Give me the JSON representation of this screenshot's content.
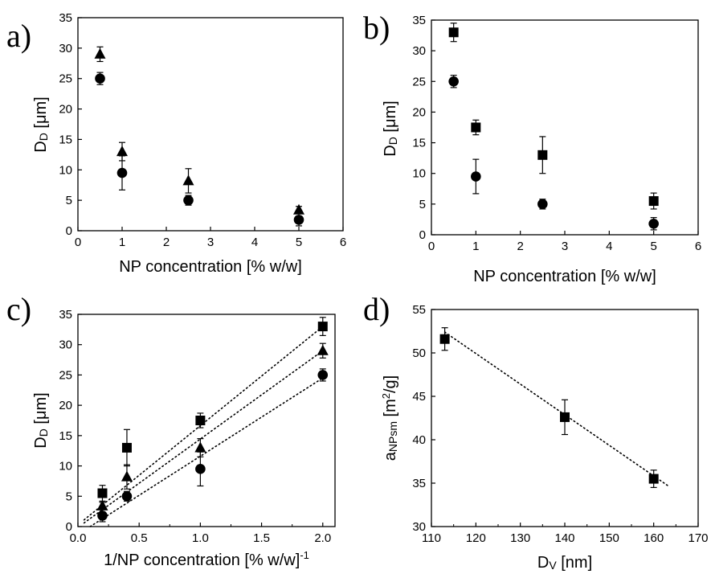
{
  "chart_data": [
    {
      "type": "scatter",
      "panel_label": "a)",
      "xlabel": "NP concentration [% w/w]",
      "ylabel_main": "D",
      "ylabel_sub": "D",
      "ylabel_unit": " [μm]",
      "xlim": [
        0,
        6
      ],
      "ylim": [
        0,
        35
      ],
      "xticks": [
        0,
        1,
        2,
        3,
        4,
        5,
        6
      ],
      "yticks": [
        0,
        5,
        10,
        15,
        20,
        25,
        30,
        35
      ],
      "series": [
        {
          "marker": "triangle",
          "x": [
            0.5,
            1.0,
            2.5,
            5.0
          ],
          "y": [
            29.0,
            13.0,
            8.2,
            3.4
          ],
          "err": [
            1.2,
            1.5,
            2.0,
            0.6
          ]
        },
        {
          "marker": "circle",
          "x": [
            0.5,
            1.0,
            2.5,
            5.0
          ],
          "y": [
            25.0,
            9.5,
            5.0,
            1.8
          ],
          "err": [
            1.0,
            2.8,
            0.8,
            1.0
          ]
        }
      ]
    },
    {
      "type": "scatter",
      "panel_label": "b)",
      "xlabel": "NP concentration [% w/w]",
      "ylabel_main": "D",
      "ylabel_sub": "D",
      "ylabel_unit": " [μm]",
      "xlim": [
        0,
        6
      ],
      "ylim": [
        0,
        35
      ],
      "xticks": [
        0,
        1,
        2,
        3,
        4,
        5,
        6
      ],
      "yticks": [
        0,
        5,
        10,
        15,
        20,
        25,
        30,
        35
      ],
      "series": [
        {
          "marker": "square",
          "x": [
            0.5,
            1.0,
            2.5,
            5.0
          ],
          "y": [
            33.0,
            17.5,
            13.0,
            5.5
          ],
          "err": [
            1.5,
            1.2,
            3.0,
            1.3
          ]
        },
        {
          "marker": "circle",
          "x": [
            0.5,
            1.0,
            2.5,
            5.0
          ],
          "y": [
            25.0,
            9.5,
            5.0,
            1.8
          ],
          "err": [
            1.0,
            2.8,
            0.8,
            1.0
          ]
        }
      ]
    },
    {
      "type": "scatter",
      "panel_label": "c)",
      "xlabel": "1/NP concentration [% w/w]",
      "xlabel_sup": "-1",
      "ylabel_main": "D",
      "ylabel_sub": "D",
      "ylabel_unit": " [μm]",
      "xlim": [
        0.0,
        2.1
      ],
      "ylim": [
        0,
        35
      ],
      "xticks": [
        0.0,
        0.5,
        1.0,
        1.5,
        2.0
      ],
      "xtick_labels": [
        "0.0",
        "0.5",
        "1.0",
        "1.5",
        "2.0"
      ],
      "yticks": [
        0,
        5,
        10,
        15,
        20,
        25,
        30,
        35
      ],
      "series": [
        {
          "marker": "square",
          "x": [
            0.2,
            0.4,
            1.0,
            2.0
          ],
          "y": [
            5.5,
            13.0,
            17.5,
            33.0
          ],
          "err": [
            1.3,
            3.0,
            1.2,
            1.5
          ]
        },
        {
          "marker": "triangle",
          "x": [
            0.2,
            0.4,
            1.0,
            2.0
          ],
          "y": [
            3.4,
            8.2,
            13.0,
            29.0
          ],
          "err": [
            0.6,
            2.0,
            1.5,
            1.2
          ]
        },
        {
          "marker": "circle",
          "x": [
            0.2,
            0.4,
            1.0,
            2.0
          ],
          "y": [
            1.8,
            5.0,
            9.5,
            25.0
          ],
          "err": [
            1.0,
            0.8,
            2.8,
            1.0
          ]
        }
      ],
      "fit_lines": [
        {
          "x": [
            0.05,
            2.0
          ],
          "y": [
            1.1,
            33.0
          ]
        },
        {
          "x": [
            0.05,
            2.0
          ],
          "y": [
            0.6,
            29.0
          ]
        },
        {
          "x": [
            0.1,
            2.0
          ],
          "y": [
            0.0,
            24.5
          ]
        }
      ]
    },
    {
      "type": "scatter",
      "panel_label": "d)",
      "xlabel_main": "D",
      "xlabel_sub": "V",
      "xlabel_unit": " [nm]",
      "ylabel_main": "a",
      "ylabel_sub": "NPsm",
      "ylabel_unit_pre": " [m",
      "ylabel_unit_sup": "2",
      "ylabel_unit_post": "/g]",
      "xlim": [
        110,
        170
      ],
      "ylim": [
        30,
        55
      ],
      "xticks": [
        110,
        120,
        130,
        140,
        150,
        160,
        170
      ],
      "yticks": [
        30,
        35,
        40,
        45,
        50,
        55
      ],
      "series": [
        {
          "marker": "square",
          "x": [
            113,
            140,
            160
          ],
          "y": [
            51.6,
            42.6,
            35.5
          ],
          "err": [
            1.3,
            2.0,
            1.0
          ]
        }
      ],
      "fit_lines": [
        {
          "x": [
            113,
            163.5
          ],
          "y": [
            52.4,
            34.6
          ]
        }
      ]
    }
  ]
}
